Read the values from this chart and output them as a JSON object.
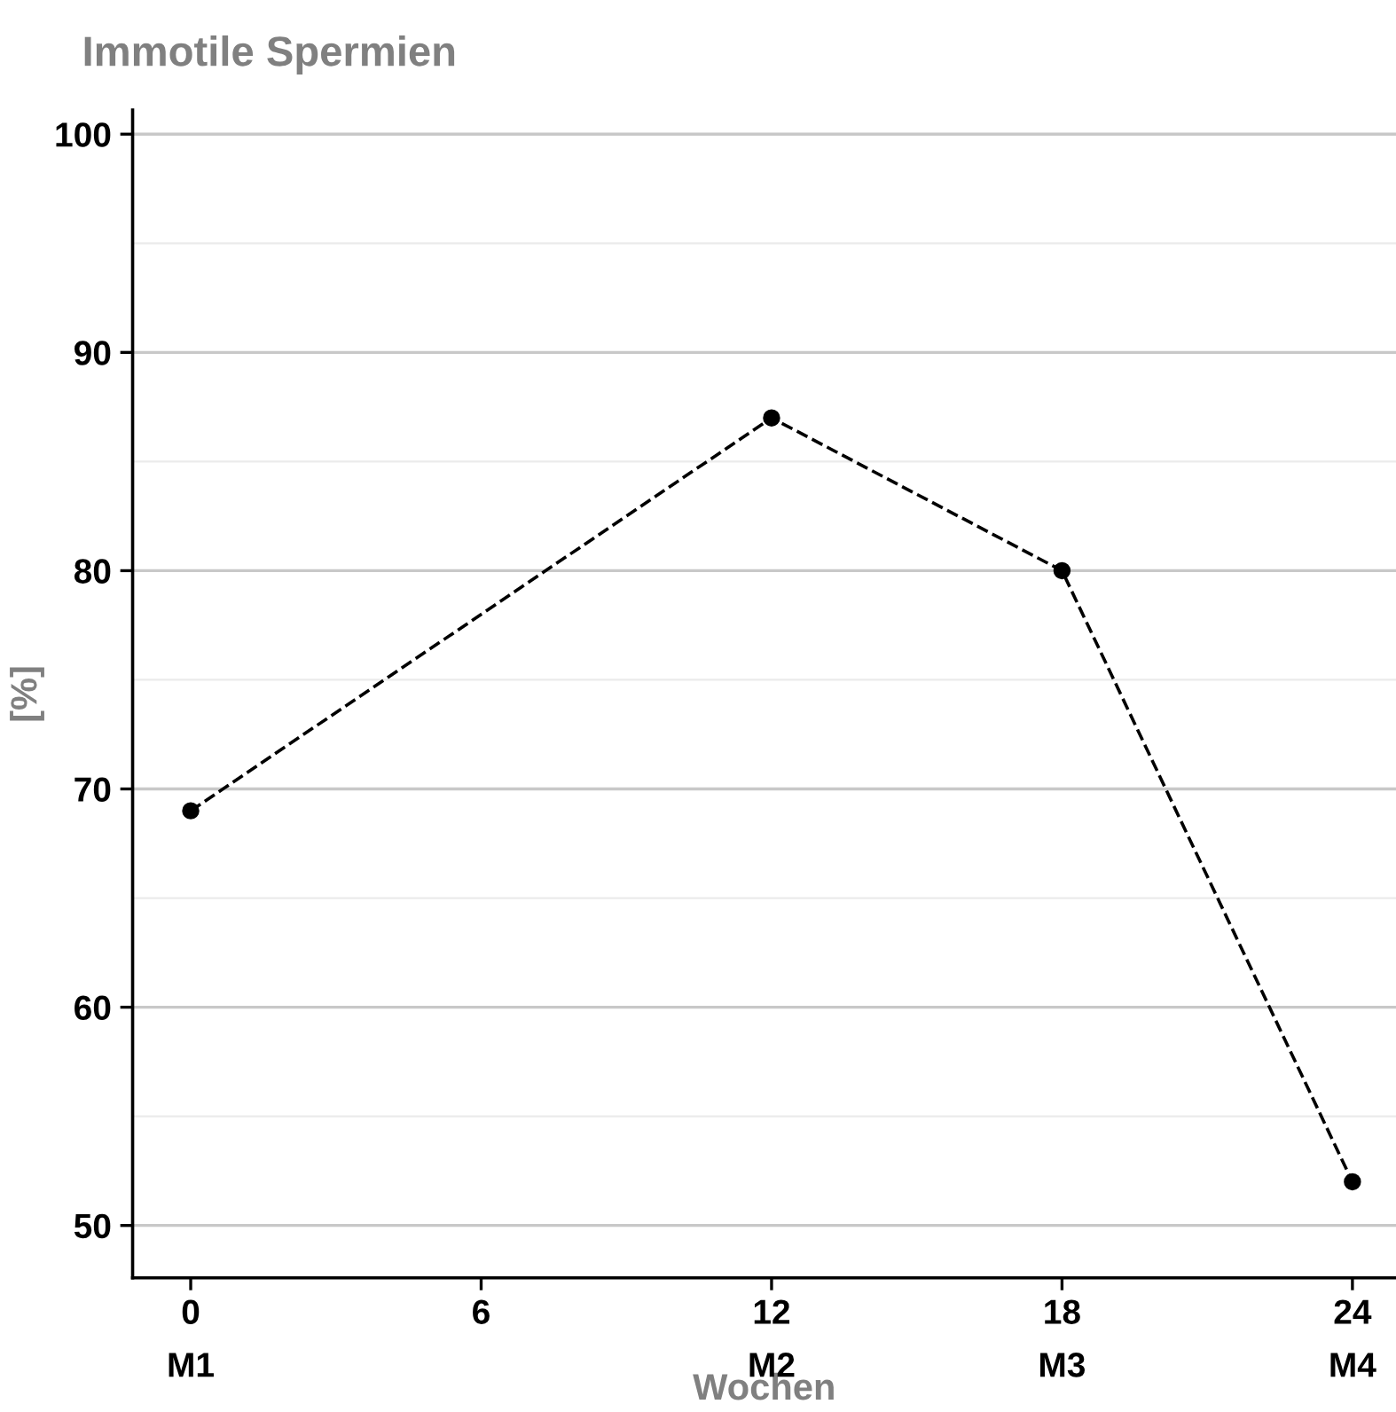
{
  "chart_data": {
    "type": "line",
    "title": "Immotile Spermien",
    "xlabel": "Wochen",
    "ylabel": "[%]",
    "x": [
      0,
      12,
      18,
      24
    ],
    "series": [
      {
        "color": "#000000",
        "values": [
          69,
          87,
          80,
          52
        ]
      }
    ],
    "xlim": [
      -1.2,
      24.9
    ],
    "ylim": [
      47.6,
      101.1
    ],
    "xticks": [
      0,
      6,
      12,
      18,
      24
    ],
    "annotations": [
      "M1",
      "M2",
      "M3",
      "M4"
    ],
    "yticks": [
      50,
      60,
      70,
      80,
      90,
      100
    ],
    "grid": "y",
    "marker": "circle",
    "line_style": "dashed",
    "legend": false
  }
}
